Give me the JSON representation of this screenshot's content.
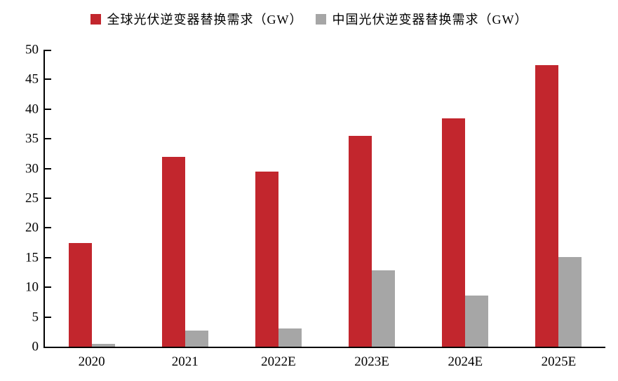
{
  "chart_data": {
    "type": "bar",
    "categories": [
      "2020",
      "2021",
      "2022E",
      "2023E",
      "2024E",
      "2025E"
    ],
    "series": [
      {
        "name": "全球光伏逆变器替换需求（GW）",
        "color": "#c2262d",
        "values": [
          17.5,
          32.0,
          29.5,
          35.5,
          38.4,
          47.4
        ]
      },
      {
        "name": "中国光伏逆变器替换需求（GW）",
        "color": "#a6a6a6",
        "values": [
          0.5,
          2.7,
          3.1,
          12.9,
          8.6,
          15.1
        ]
      }
    ],
    "ylabel": "",
    "xlabel": "",
    "title": "",
    "ylim": [
      0,
      50
    ],
    "ytick_step": 5,
    "grid": false,
    "legend_position": "top-center",
    "axis_color": "#000000",
    "background_color": "#ffffff"
  }
}
